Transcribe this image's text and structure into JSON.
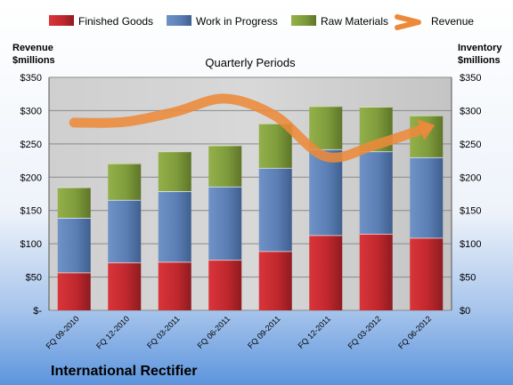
{
  "company": "International Rectifier",
  "chart_data": {
    "type": "bar",
    "subtitle": "Quarterly Periods",
    "ylabel_left": [
      "Revenue",
      "$millions"
    ],
    "ylabel_right": [
      "Inventory",
      "$millions"
    ],
    "ylim": [
      0,
      350
    ],
    "yticks": [
      0,
      50,
      100,
      150,
      200,
      250,
      300,
      350
    ],
    "ytick_labels_left": [
      "$-",
      "$50",
      "$100",
      "$150",
      "$200",
      "$250",
      "$300",
      "$350"
    ],
    "ytick_labels_right": [
      "$0",
      "$50",
      "$100",
      "$150",
      "$200",
      "$250",
      "$300",
      "$350"
    ],
    "categories": [
      "FQ 09-2010",
      "FQ 12-2010",
      "FQ 03-2011",
      "FQ 06-2011",
      "FQ 09-2011",
      "FQ 12-2011",
      "FQ 03-2012",
      "FQ 06-2012"
    ],
    "stacked": true,
    "grid": true,
    "legend_position": "top",
    "series": [
      {
        "name": "Finished Goods",
        "kind": "bar",
        "color": "#c0282e",
        "values": [
          57,
          72,
          73,
          76,
          89,
          113,
          115,
          109
        ]
      },
      {
        "name": "Work in Progress",
        "kind": "bar",
        "color": "#5b7fb5",
        "values": [
          82,
          94,
          106,
          110,
          125,
          129,
          124,
          121
        ]
      },
      {
        "name": "Raw Materials",
        "kind": "bar",
        "color": "#7f9c3c",
        "values": [
          46,
          55,
          60,
          62,
          67,
          65,
          67,
          63
        ]
      },
      {
        "name": "Revenue",
        "kind": "line",
        "color": "#ec8a3a",
        "values": [
          282,
          283,
          298,
          318,
          292,
          231,
          249,
          274
        ]
      }
    ]
  }
}
